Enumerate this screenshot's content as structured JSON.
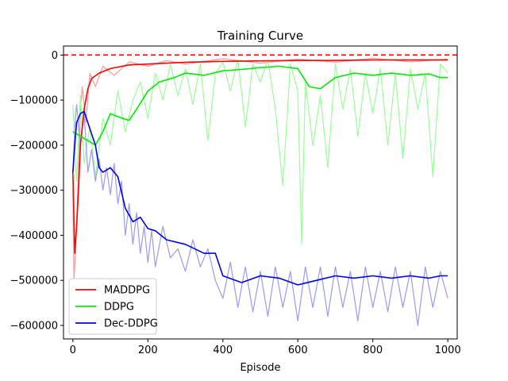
{
  "chart_data": {
    "type": "line",
    "title": "Training Curve",
    "xlabel": "Episode",
    "ylabel": "",
    "xlim": [
      -25,
      1025
    ],
    "ylim": [
      -630000,
      20000
    ],
    "xticks": [
      0,
      200,
      400,
      600,
      800,
      1000
    ],
    "xtick_labels": [
      "0",
      "200",
      "400",
      "600",
      "800",
      "1000"
    ],
    "yticks": [
      0,
      -100000,
      -200000,
      -300000,
      -400000,
      -500000,
      -600000
    ],
    "ytick_labels": [
      "0",
      "−100000",
      "−200000",
      "−300000",
      "−400000",
      "−500000",
      "−600000"
    ],
    "reference_line": {
      "y": 0,
      "color": "#ff0000",
      "style": "dashed"
    },
    "legend_position": "lower-left",
    "grid": false,
    "series": [
      {
        "name": "MADDPG",
        "color": "#ff0000",
        "raw_color": "#ff9999",
        "smoothed": [
          [
            0,
            -260000
          ],
          [
            5,
            -440000
          ],
          [
            10,
            -380000
          ],
          [
            15,
            -300000
          ],
          [
            20,
            -200000
          ],
          [
            30,
            -120000
          ],
          [
            40,
            -75000
          ],
          [
            50,
            -52000
          ],
          [
            70,
            -40000
          ],
          [
            100,
            -30000
          ],
          [
            150,
            -22000
          ],
          [
            200,
            -20000
          ],
          [
            250,
            -18000
          ],
          [
            300,
            -16000
          ],
          [
            400,
            -14000
          ],
          [
            500,
            -13000
          ],
          [
            600,
            -12000
          ],
          [
            700,
            -12000
          ],
          [
            800,
            -11000
          ],
          [
            900,
            -11000
          ],
          [
            1000,
            -11000
          ]
        ],
        "raw": [
          [
            0,
            -300000
          ],
          [
            3,
            -500000
          ],
          [
            8,
            -420000
          ],
          [
            15,
            -250000
          ],
          [
            20,
            -120000
          ],
          [
            25,
            -70000
          ],
          [
            35,
            -150000
          ],
          [
            45,
            -40000
          ],
          [
            60,
            -70000
          ],
          [
            80,
            -25000
          ],
          [
            110,
            -45000
          ],
          [
            150,
            -15000
          ],
          [
            200,
            -25000
          ],
          [
            250,
            -12000
          ],
          [
            300,
            -20000
          ],
          [
            400,
            -8000
          ],
          [
            500,
            -18000
          ],
          [
            600,
            -9000
          ],
          [
            700,
            -16000
          ],
          [
            800,
            -7000
          ],
          [
            900,
            -15000
          ],
          [
            1000,
            -9000
          ]
        ]
      },
      {
        "name": "DDPG",
        "color": "#00ee00",
        "raw_color": "#99ff99",
        "smoothed": [
          [
            0,
            -170000
          ],
          [
            10,
            -175000
          ],
          [
            20,
            -180000
          ],
          [
            40,
            -190000
          ],
          [
            60,
            -200000
          ],
          [
            80,
            -170000
          ],
          [
            100,
            -130000
          ],
          [
            130,
            -140000
          ],
          [
            150,
            -145000
          ],
          [
            170,
            -120000
          ],
          [
            200,
            -80000
          ],
          [
            230,
            -60000
          ],
          [
            270,
            -50000
          ],
          [
            300,
            -40000
          ],
          [
            350,
            -45000
          ],
          [
            400,
            -35000
          ],
          [
            450,
            -32000
          ],
          [
            500,
            -28000
          ],
          [
            550,
            -25000
          ],
          [
            600,
            -30000
          ],
          [
            630,
            -70000
          ],
          [
            660,
            -75000
          ],
          [
            700,
            -50000
          ],
          [
            750,
            -40000
          ],
          [
            800,
            -45000
          ],
          [
            850,
            -40000
          ],
          [
            900,
            -45000
          ],
          [
            950,
            -42000
          ],
          [
            980,
            -50000
          ],
          [
            1000,
            -50000
          ]
        ],
        "raw": [
          [
            0,
            -110000
          ],
          [
            10,
            -280000
          ],
          [
            20,
            -90000
          ],
          [
            30,
            -240000
          ],
          [
            45,
            -160000
          ],
          [
            60,
            -270000
          ],
          [
            80,
            -140000
          ],
          [
            100,
            -200000
          ],
          [
            120,
            -80000
          ],
          [
            140,
            -170000
          ],
          [
            160,
            -100000
          ],
          [
            180,
            -60000
          ],
          [
            200,
            -140000
          ],
          [
            220,
            -40000
          ],
          [
            240,
            -100000
          ],
          [
            260,
            -20000
          ],
          [
            280,
            -90000
          ],
          [
            300,
            -30000
          ],
          [
            320,
            -110000
          ],
          [
            340,
            -20000
          ],
          [
            360,
            -190000
          ],
          [
            380,
            -40000
          ],
          [
            400,
            -15000
          ],
          [
            420,
            -80000
          ],
          [
            440,
            -10000
          ],
          [
            460,
            -160000
          ],
          [
            480,
            -20000
          ],
          [
            500,
            -60000
          ],
          [
            520,
            -10000
          ],
          [
            540,
            -120000
          ],
          [
            560,
            -290000
          ],
          [
            580,
            -20000
          ],
          [
            600,
            -80000
          ],
          [
            610,
            -420000
          ],
          [
            620,
            -60000
          ],
          [
            640,
            -200000
          ],
          [
            660,
            -90000
          ],
          [
            680,
            -250000
          ],
          [
            700,
            -20000
          ],
          [
            720,
            -120000
          ],
          [
            740,
            -30000
          ],
          [
            760,
            -180000
          ],
          [
            780,
            -40000
          ],
          [
            800,
            -130000
          ],
          [
            820,
            -30000
          ],
          [
            840,
            -200000
          ],
          [
            860,
            -40000
          ],
          [
            880,
            -230000
          ],
          [
            900,
            -30000
          ],
          [
            920,
            -120000
          ],
          [
            940,
            -40000
          ],
          [
            960,
            -270000
          ],
          [
            980,
            -20000
          ],
          [
            1000,
            -40000
          ]
        ]
      },
      {
        "name": "Dec-DDPG",
        "color": "#0000ff",
        "raw_color": "#9999ff",
        "smoothed": [
          [
            0,
            -260000
          ],
          [
            5,
            -200000
          ],
          [
            10,
            -150000
          ],
          [
            20,
            -130000
          ],
          [
            30,
            -125000
          ],
          [
            40,
            -150000
          ],
          [
            50,
            -175000
          ],
          [
            60,
            -200000
          ],
          [
            70,
            -250000
          ],
          [
            80,
            -260000
          ],
          [
            100,
            -250000
          ],
          [
            120,
            -270000
          ],
          [
            140,
            -340000
          ],
          [
            160,
            -370000
          ],
          [
            180,
            -360000
          ],
          [
            200,
            -385000
          ],
          [
            220,
            -390000
          ],
          [
            250,
            -410000
          ],
          [
            300,
            -420000
          ],
          [
            350,
            -440000
          ],
          [
            380,
            -440000
          ],
          [
            400,
            -490000
          ],
          [
            450,
            -505000
          ],
          [
            500,
            -490000
          ],
          [
            550,
            -495000
          ],
          [
            600,
            -510000
          ],
          [
            650,
            -500000
          ],
          [
            700,
            -490000
          ],
          [
            750,
            -495000
          ],
          [
            800,
            -490000
          ],
          [
            850,
            -495000
          ],
          [
            900,
            -490000
          ],
          [
            950,
            -495000
          ],
          [
            980,
            -490000
          ],
          [
            1000,
            -490000
          ]
        ],
        "raw": [
          [
            0,
            -260000
          ],
          [
            5,
            -160000
          ],
          [
            10,
            -110000
          ],
          [
            20,
            -200000
          ],
          [
            30,
            -130000
          ],
          [
            40,
            -260000
          ],
          [
            50,
            -210000
          ],
          [
            60,
            -280000
          ],
          [
            70,
            -230000
          ],
          [
            80,
            -300000
          ],
          [
            90,
            -250000
          ],
          [
            100,
            -310000
          ],
          [
            110,
            -240000
          ],
          [
            120,
            -330000
          ],
          [
            130,
            -280000
          ],
          [
            140,
            -400000
          ],
          [
            150,
            -330000
          ],
          [
            160,
            -420000
          ],
          [
            170,
            -350000
          ],
          [
            180,
            -440000
          ],
          [
            190,
            -380000
          ],
          [
            200,
            -460000
          ],
          [
            210,
            -390000
          ],
          [
            220,
            -470000
          ],
          [
            240,
            -380000
          ],
          [
            260,
            -450000
          ],
          [
            280,
            -430000
          ],
          [
            300,
            -480000
          ],
          [
            320,
            -410000
          ],
          [
            340,
            -470000
          ],
          [
            360,
            -430000
          ],
          [
            380,
            -500000
          ],
          [
            400,
            -540000
          ],
          [
            420,
            -460000
          ],
          [
            440,
            -560000
          ],
          [
            460,
            -470000
          ],
          [
            480,
            -570000
          ],
          [
            500,
            -480000
          ],
          [
            520,
            -580000
          ],
          [
            540,
            -470000
          ],
          [
            560,
            -560000
          ],
          [
            580,
            -480000
          ],
          [
            600,
            -590000
          ],
          [
            620,
            -470000
          ],
          [
            640,
            -560000
          ],
          [
            660,
            -470000
          ],
          [
            680,
            -580000
          ],
          [
            700,
            -470000
          ],
          [
            720,
            -560000
          ],
          [
            740,
            -480000
          ],
          [
            760,
            -590000
          ],
          [
            780,
            -470000
          ],
          [
            800,
            -560000
          ],
          [
            820,
            -480000
          ],
          [
            840,
            -570000
          ],
          [
            860,
            -470000
          ],
          [
            880,
            -560000
          ],
          [
            900,
            -480000
          ],
          [
            920,
            -600000
          ],
          [
            940,
            -470000
          ],
          [
            960,
            -560000
          ],
          [
            980,
            -480000
          ],
          [
            1000,
            -540000
          ]
        ]
      }
    ]
  }
}
